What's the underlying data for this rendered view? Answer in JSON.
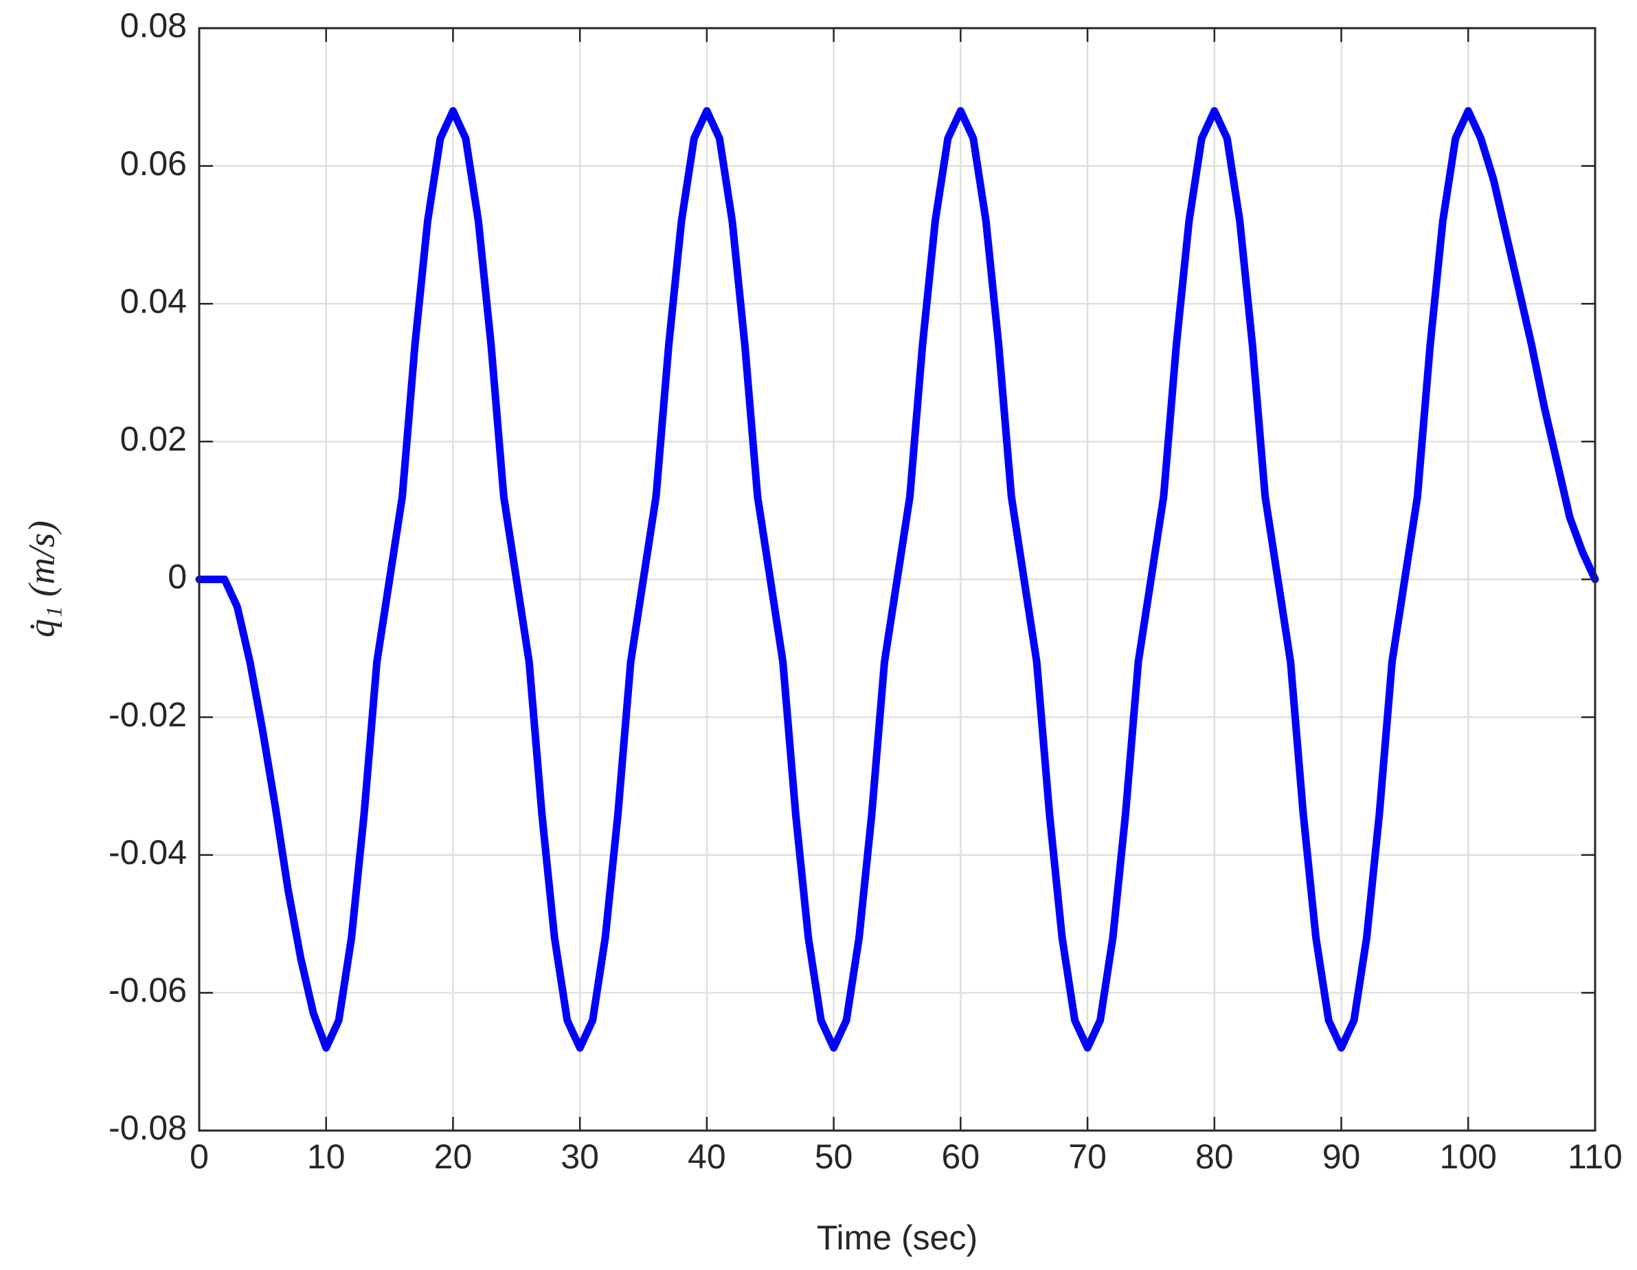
{
  "chart_data": {
    "type": "line",
    "xlabel": "Time (sec)",
    "ylabel": "q̇₁ (m/s)",
    "x": [
      0,
      1,
      2,
      3,
      4,
      5,
      6,
      7,
      8,
      9,
      10,
      11,
      12,
      13,
      14,
      15,
      16,
      17,
      18,
      19,
      20,
      21,
      22,
      23,
      24,
      25,
      26,
      27,
      28,
      29,
      30,
      31,
      32,
      33,
      34,
      35,
      36,
      37,
      38,
      39,
      40,
      41,
      42,
      43,
      44,
      45,
      46,
      47,
      48,
      49,
      50,
      51,
      52,
      53,
      54,
      55,
      56,
      57,
      58,
      59,
      60,
      61,
      62,
      63,
      64,
      65,
      66,
      67,
      68,
      69,
      70,
      71,
      72,
      73,
      74,
      75,
      76,
      77,
      78,
      79,
      80,
      81,
      82,
      83,
      84,
      85,
      86,
      87,
      88,
      89,
      90,
      91,
      92,
      93,
      94,
      95,
      96,
      97,
      98,
      99,
      100,
      101,
      102,
      103,
      104,
      105,
      106,
      107,
      108,
      109,
      110
    ],
    "values": [
      0,
      0,
      0,
      -0.004,
      -0.012,
      -0.022,
      -0.033,
      -0.045,
      -0.055,
      -0.063,
      -0.068,
      -0.064,
      -0.052,
      -0.034,
      -0.012,
      0,
      0.012,
      0.034,
      0.052,
      0.064,
      0.068,
      0.064,
      0.052,
      0.034,
      0.012,
      0,
      -0.012,
      -0.034,
      -0.052,
      -0.064,
      -0.068,
      -0.064,
      -0.052,
      -0.034,
      -0.012,
      0,
      0.012,
      0.034,
      0.052,
      0.064,
      0.068,
      0.064,
      0.052,
      0.034,
      0.012,
      0,
      -0.012,
      -0.034,
      -0.052,
      -0.064,
      -0.068,
      -0.064,
      -0.052,
      -0.034,
      -0.012,
      0,
      0.012,
      0.034,
      0.052,
      0.064,
      0.068,
      0.064,
      0.052,
      0.034,
      0.012,
      0,
      -0.012,
      -0.034,
      -0.052,
      -0.064,
      -0.068,
      -0.064,
      -0.052,
      -0.034,
      -0.012,
      0,
      0.012,
      0.034,
      0.052,
      0.064,
      0.068,
      0.064,
      0.052,
      0.034,
      0.012,
      0,
      -0.012,
      -0.034,
      -0.052,
      -0.064,
      -0.068,
      -0.064,
      -0.052,
      -0.034,
      -0.012,
      0,
      0.012,
      0.034,
      0.052,
      0.064,
      0.068,
      0.064,
      0.058,
      0.05,
      0.042,
      0.034,
      0.025,
      0.017,
      0.009,
      0.004,
      0
    ],
    "color": "#0000ff",
    "xlim": [
      0,
      110
    ],
    "xticks": [
      0,
      10,
      20,
      30,
      40,
      50,
      60,
      70,
      80,
      90,
      100,
      110
    ],
    "ylim": [
      -0.08,
      0.08
    ],
    "yticks": [
      -0.08,
      -0.06,
      -0.04,
      -0.02,
      0,
      0.02,
      0.04,
      0.06,
      0.08
    ],
    "grid": true
  }
}
